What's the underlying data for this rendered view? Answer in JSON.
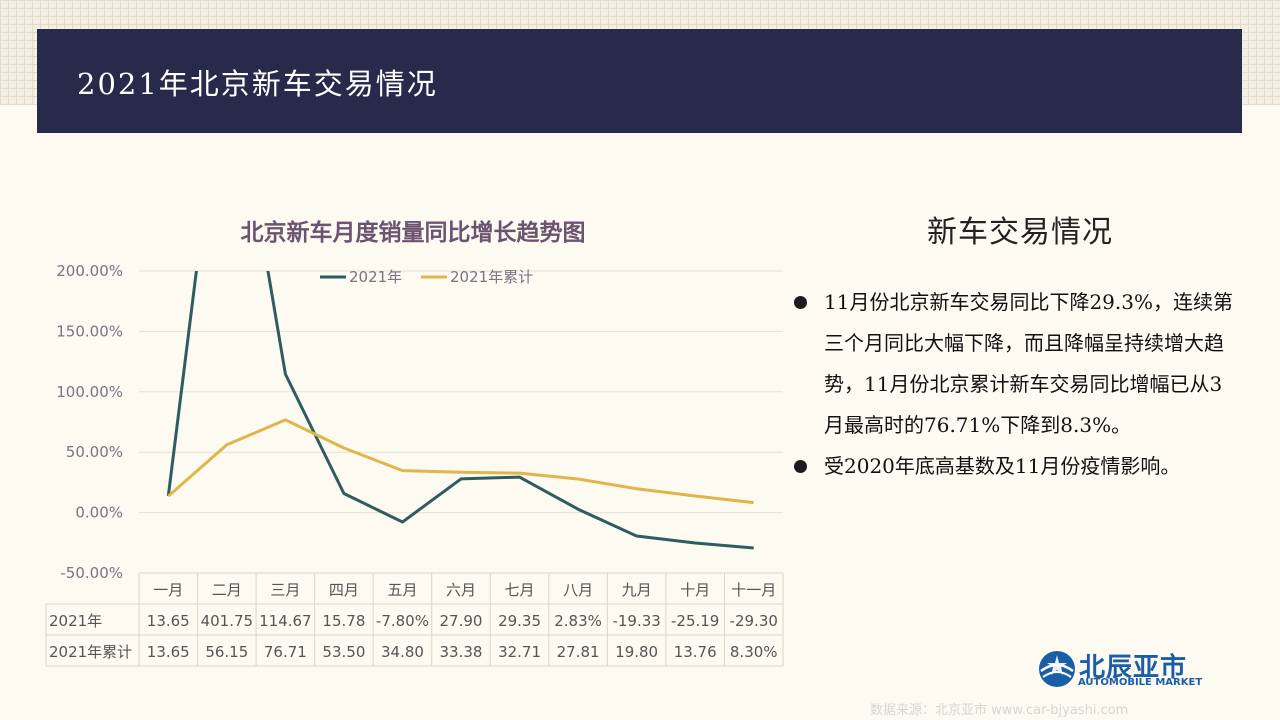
{
  "header": {
    "title": "2021年北京新车交易情况"
  },
  "chart_data": {
    "type": "line",
    "title": "北京新车月度销量同比增长趋势图",
    "categories": [
      "一月",
      "二月",
      "三月",
      "四月",
      "五月",
      "六月",
      "七月",
      "八月",
      "九月",
      "十月",
      "十一月"
    ],
    "ylim": [
      -50,
      200
    ],
    "yticks": [
      200,
      150,
      100,
      50,
      0,
      -50
    ],
    "ytick_labels": [
      "200.00%",
      "150.00%",
      "100.00%",
      "50.00%",
      "0.00%",
      "-50.00%"
    ],
    "grid": true,
    "legend_position": "top",
    "series": [
      {
        "name": "2021年",
        "color": "#2f5d5f",
        "values": [
          13.65,
          401.75,
          114.67,
          15.78,
          -7.8,
          27.9,
          29.35,
          2.83,
          -19.33,
          -25.19,
          -29.3
        ],
        "table_labels": [
          "13.65",
          "401.75",
          "114.67",
          "15.78",
          "-7.80%",
          "27.90",
          "29.35",
          "2.83%",
          "-19.33",
          "-25.19",
          "-29.30"
        ]
      },
      {
        "name": "2021年累计",
        "color": "#e0b64a",
        "values": [
          13.65,
          56.15,
          76.71,
          53.5,
          34.8,
          33.38,
          32.71,
          27.81,
          19.8,
          13.76,
          8.3
        ],
        "table_labels": [
          "13.65",
          "56.15",
          "76.71",
          "53.50",
          "34.80",
          "33.38",
          "32.71",
          "27.81",
          "19.80",
          "13.76",
          "8.30%"
        ]
      }
    ]
  },
  "right_panel": {
    "title": "新车交易情况",
    "bullets": [
      "11月份北京新车交易同比下降29.3%，连续第三个月同比大幅下降，而且降幅呈持续增大趋势，11月份北京累计新车交易同比增幅已从3月最高时的76.71%下降到8.3%。",
      "受2020年底高基数及11月份疫情影响。"
    ]
  },
  "logo": {
    "cn": "北辰亚市",
    "en": "AUTOMOBILE MARKET",
    "icon": "globe-car-icon",
    "color": "#1b5ea8"
  },
  "watermark": {
    "text": "数据来源：北京亚市 www.car-bjyashi.com"
  }
}
